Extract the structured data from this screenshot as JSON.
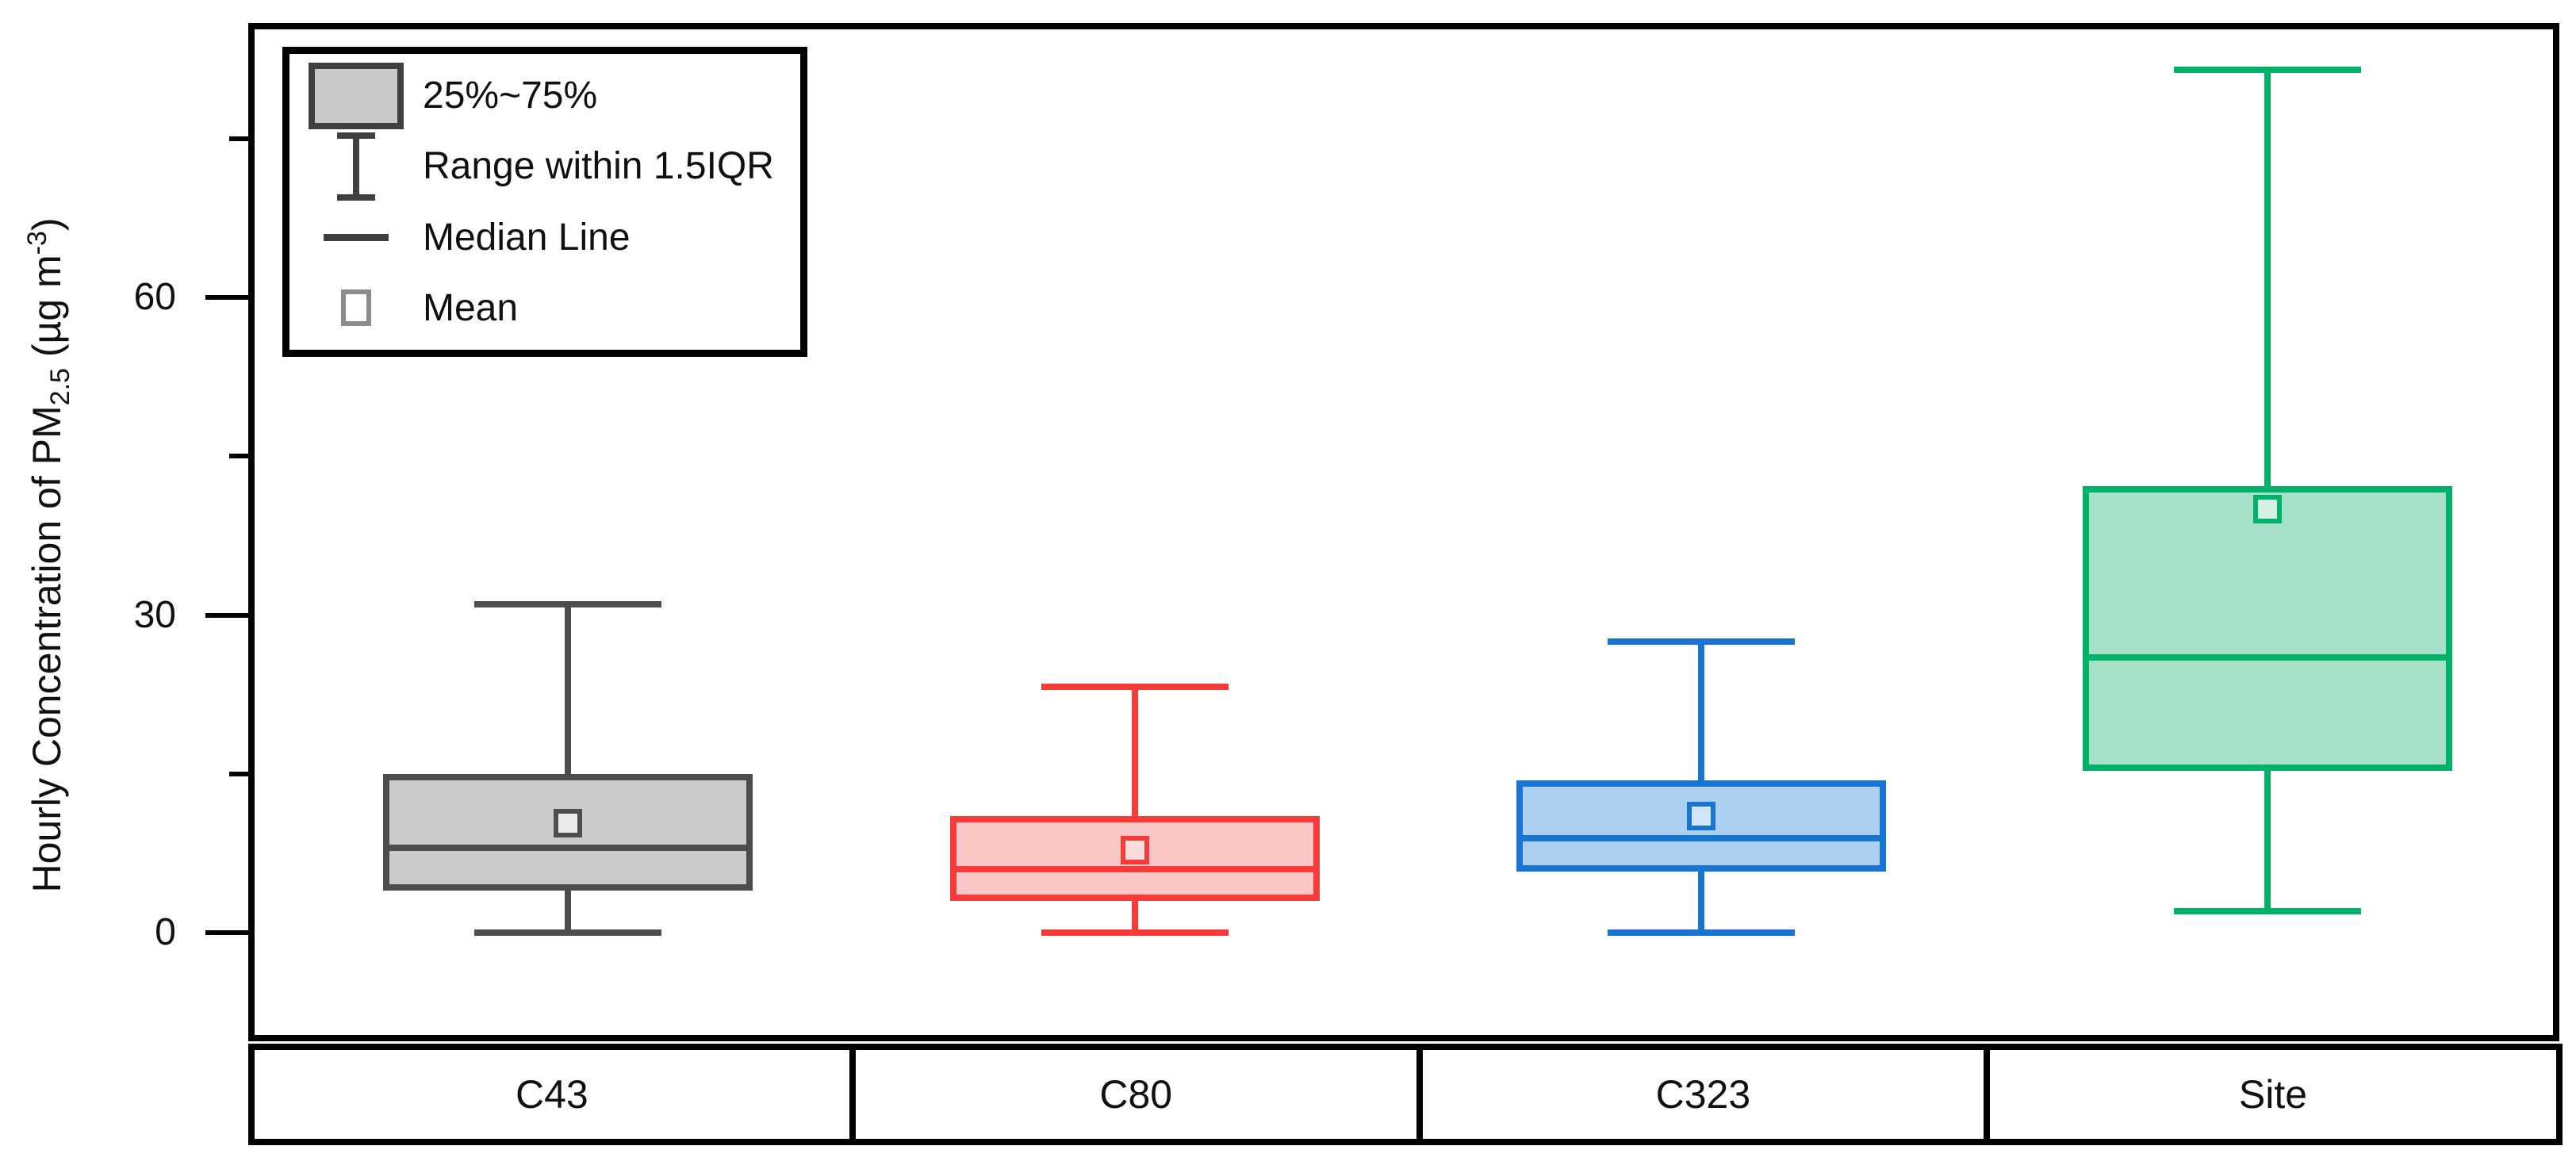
{
  "figure": {
    "background": "#ffffff",
    "frame_color": "#000000",
    "text_color": "#111111"
  },
  "y_axis": {
    "title_prefix": "Hourly Concentration of PM",
    "title_sub": "2.5",
    "title_mid": " (µg m",
    "title_sup": "-3",
    "title_suffix": ")",
    "major_ticks": [
      {
        "value": 0,
        "label": "0"
      },
      {
        "value": 30,
        "label": "30"
      },
      {
        "value": 60,
        "label": "60"
      }
    ],
    "minor_ticks": [
      15,
      45,
      75
    ]
  },
  "legend": {
    "items": [
      {
        "icon": "box-swatch",
        "label": "25%~75%"
      },
      {
        "icon": "whisker-range",
        "label": "Range within 1.5IQR"
      },
      {
        "icon": "median-line",
        "label": "Median Line"
      },
      {
        "icon": "mean-square",
        "label": "Mean"
      }
    ]
  },
  "chart_data": {
    "type": "box",
    "title": "",
    "ylabel": "Hourly Concentration of PM2.5 (µg m-3)",
    "xlabel": "",
    "categories": [
      "C43",
      "C80",
      "C323",
      "Site"
    ],
    "ylim": [
      -9.7,
      85.6
    ],
    "yticks": [
      0,
      30,
      60
    ],
    "yticks_minor": [
      15,
      45,
      75
    ],
    "grid": false,
    "legend_position": "top-left",
    "legend_entries": [
      "25%~75%",
      "Range within 1.5IQR",
      "Median Line",
      "Mean"
    ],
    "series": [
      {
        "category": "C43",
        "whisker_low": 0,
        "q1": 4.0,
        "median": 8.0,
        "q3": 15.0,
        "whisker_high": 31.0,
        "mean": 10.3,
        "line_color": "#4d4d4d",
        "fill_color": "#cbcbcb",
        "mean_fill": "#ebebeb"
      },
      {
        "category": "C80",
        "whisker_low": 0,
        "q1": 3.0,
        "median": 6.0,
        "q3": 11.0,
        "whisker_high": 23.2,
        "mean": 7.8,
        "line_color": "#f63b39",
        "fill_color": "#fbc6c6",
        "mean_fill": "#fcdcdc"
      },
      {
        "category": "C323",
        "whisker_low": 0,
        "q1": 5.8,
        "median": 8.9,
        "q3": 14.4,
        "whisker_high": 27.5,
        "mean": 11.0,
        "line_color": "#1874d2",
        "fill_color": "#aed0f0",
        "mean_fill": "#d3e6f8"
      },
      {
        "category": "Site",
        "whisker_low": 2.0,
        "q1": 15.3,
        "median": 26.0,
        "q3": 42.2,
        "whisker_high": 81.5,
        "mean": 40.0,
        "line_color": "#00b169",
        "fill_color": "#a7e0c9",
        "mean_fill": "#d7f1e6"
      }
    ]
  }
}
